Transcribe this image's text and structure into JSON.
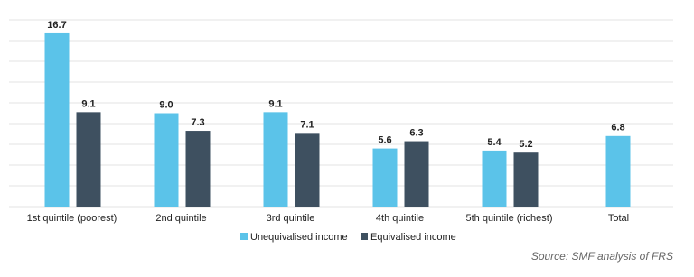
{
  "chart_data": {
    "type": "bar",
    "categories": [
      "1st quintile (poorest)",
      "2nd quintile",
      "3rd quintile",
      "4th quintile",
      "5th quintile (richest)",
      "Total"
    ],
    "series": [
      {
        "name": "Unequivalised income",
        "color": "#5bc3e9",
        "values": [
          16.7,
          9.0,
          9.1,
          5.6,
          5.4,
          6.8
        ],
        "value_labels": [
          "16.7",
          "9.0",
          "9.1",
          "5.6",
          "5.4",
          "6.8"
        ]
      },
      {
        "name": "Equivalised income",
        "color": "#3e5060",
        "values": [
          9.1,
          7.3,
          7.1,
          6.3,
          5.2,
          null
        ],
        "value_labels": [
          "9.1",
          "7.3",
          "7.1",
          "6.3",
          "5.2",
          null
        ]
      }
    ],
    "ylim": [
      0,
      18
    ],
    "yticks": [
      0,
      2,
      4,
      6,
      8,
      10,
      12,
      14,
      16,
      18
    ],
    "grid": true,
    "source": "Source: SMF analysis of FRS"
  }
}
